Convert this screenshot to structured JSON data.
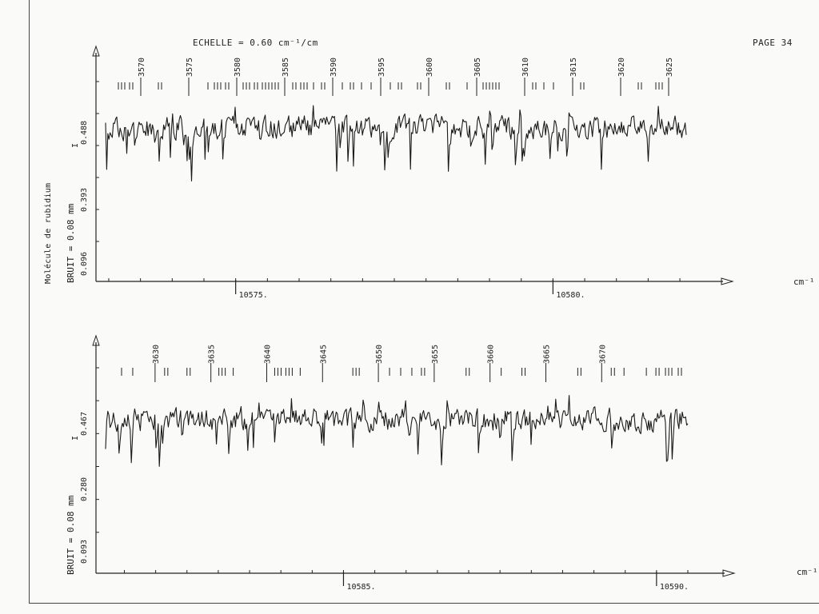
{
  "header": {
    "scale_label": "ECHELLE = 0.60 cm⁻¹/cm",
    "page_number": "PAGE 34"
  },
  "side_labels": {
    "molecule": "Molécule de rubidium",
    "noise_top": "BRUIT = 0.08 mm",
    "noise_bottom": "BRUIT = 0.08 mm"
  },
  "units": {
    "top": "cm⁻¹",
    "bottom": "cm⁻¹"
  },
  "chart_data": [
    {
      "type": "line",
      "title": "",
      "xlabel": "cm⁻¹",
      "ylabel": "I",
      "x_ticks": [
        {
          "value": 10575,
          "label": "10575."
        },
        {
          "value": 10580,
          "label": "10580."
        }
      ],
      "xlim": [
        10572.95,
        10582.1
      ],
      "y_ticks": [
        "0.488",
        "0.393",
        "0.096"
      ],
      "line_marks": [
        3570,
        3575,
        3580,
        3585,
        3590,
        3595,
        3600,
        3605,
        3610,
        3615,
        3620,
        3625
      ],
      "line_mark_range": [
        3568,
        3626
      ],
      "series": [
        {
          "values": []
        }
      ],
      "grid": false,
      "color": "#1a1a1a"
    },
    {
      "type": "line",
      "title": "",
      "xlabel": "cm⁻¹",
      "ylabel": "I",
      "x_ticks": [
        {
          "value": 10585,
          "label": "10585."
        },
        {
          "value": 10590,
          "label": "10590."
        }
      ],
      "xlim": [
        10581.2,
        10590.5
      ],
      "y_ticks": [
        "0.467",
        "0.280",
        "0.093"
      ],
      "line_marks": [
        3630,
        3635,
        3640,
        3645,
        3650,
        3655,
        3660,
        3665,
        3670
      ],
      "line_mark_range": [
        3627,
        3677
      ],
      "series": [
        {
          "values": []
        }
      ],
      "grid": false,
      "color": "#1a1a1a"
    }
  ]
}
